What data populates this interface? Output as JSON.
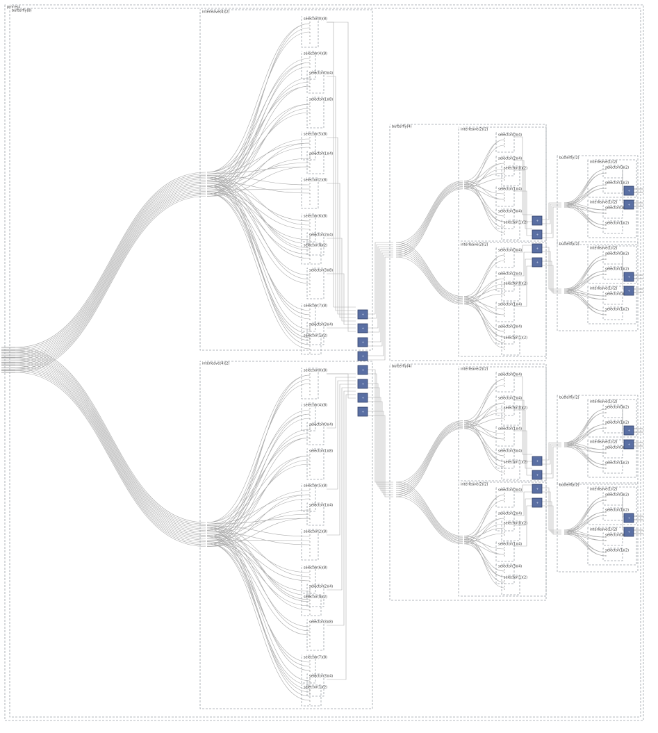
{
  "root": {
    "label": "process"
  },
  "top_butterfly": {
    "label": "butterfly(8)"
  },
  "interleave8": [
    {
      "label": "interleave(4)(2)"
    },
    {
      "label": "interleave(4)(2)"
    }
  ],
  "interleave8_selectors": [
    "selector(0)(8)",
    "selector(4)(8)",
    "selector(0)(4)",
    "selector(1)(8)",
    "selector(5)(8)",
    "selector(1)(4)",
    "selector(2)(8)",
    "selector(6)(8)",
    "selector(2)(4)",
    "selector(0)(2)",
    "selector(3)(8)",
    "selector(7)(8)",
    "selector(3)(4)",
    "selector(1)(2)"
  ],
  "butterfly4": [
    {
      "label": "butterfly(4)"
    },
    {
      "label": "butterfly(4)"
    }
  ],
  "interleave4_label": "interleave(2)(2)",
  "interleave4_selectors": [
    "selector(0)(4)",
    "selector(2)(4)",
    "selector(0)(2)",
    "selector(1)(4)",
    "selector(3)(4)",
    "selector(1)(2)"
  ],
  "butterfly2_label": "butterfly(2)",
  "interleave2_label": "interleave(1)(2)",
  "interleave2_selectors": [
    "selector(0)(2)",
    "selector(1)(2)"
  ],
  "node_glyph": "+"
}
